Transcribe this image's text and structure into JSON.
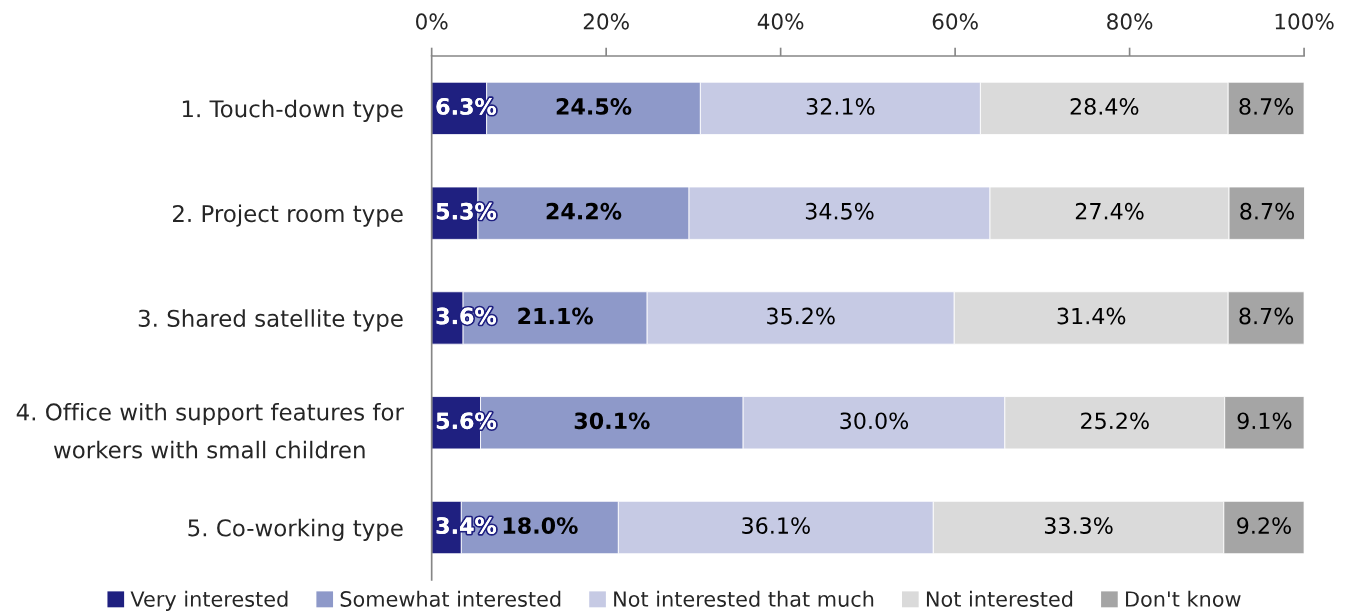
{
  "chart_data": {
    "type": "bar",
    "orientation": "horizontal",
    "stacked": true,
    "categories": [
      "1. Touch-down type",
      "2. Project room type",
      "3. Shared satellite type",
      "4. Office with support features for\nworkers with small children",
      "5. Co-working type"
    ],
    "series": [
      {
        "name": "Very interested",
        "color": "#1f2080",
        "values": [
          6.3,
          5.3,
          3.6,
          5.6,
          3.4
        ],
        "value_labels": [
          "6.3%",
          "5.3%",
          "3.6%",
          "5.6%",
          "3.4%"
        ]
      },
      {
        "name": "Somewhat interested",
        "color": "#8e99c9",
        "values": [
          24.5,
          24.2,
          21.1,
          30.1,
          18.0
        ],
        "value_labels": [
          "24.5%",
          "24.2%",
          "21.1%",
          "30.1%",
          "18.0%"
        ]
      },
      {
        "name": "Not interested that much",
        "color": "#c6cae4",
        "values": [
          32.1,
          34.5,
          35.2,
          30.0,
          36.1
        ],
        "value_labels": [
          "32.1%",
          "34.5%",
          "35.2%",
          "30.0%",
          "36.1%"
        ]
      },
      {
        "name": "Not interested",
        "color": "#dadada",
        "values": [
          28.4,
          27.4,
          31.4,
          25.2,
          33.3
        ],
        "value_labels": [
          "28.4%",
          "27.4%",
          "31.4%",
          "25.2%",
          "33.3%"
        ]
      },
      {
        "name": "Don't know",
        "color": "#a5a5a5",
        "values": [
          8.7,
          8.7,
          8.7,
          9.1,
          9.2
        ],
        "value_labels": [
          "8.7%",
          "8.7%",
          "8.7%",
          "9.1%",
          "9.2%"
        ]
      }
    ],
    "xlim": [
      0,
      100
    ],
    "xticks": [
      {
        "value": 0,
        "label": "0%"
      },
      {
        "value": 20,
        "label": "20%"
      },
      {
        "value": 40,
        "label": "40%"
      },
      {
        "value": 60,
        "label": "60%"
      },
      {
        "value": 80,
        "label": "80%"
      },
      {
        "value": 100,
        "label": "100%"
      }
    ],
    "legend": "bottom"
  }
}
